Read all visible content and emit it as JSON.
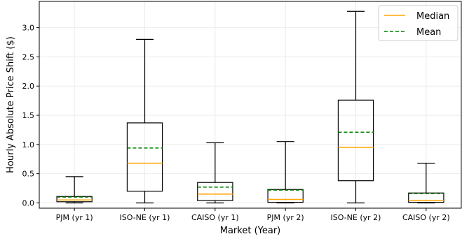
{
  "chart_data": {
    "type": "box",
    "xlabel": "Market (Year)",
    "ylabel": "Hourly Absolute Price Shift ($)",
    "ylim": [
      -0.09,
      3.45
    ],
    "yticks": [
      "0.0",
      "0.5",
      "1.0",
      "1.5",
      "2.0",
      "2.5",
      "3.0"
    ],
    "grid": true,
    "legend": {
      "position": "top-right",
      "entries": [
        {
          "label": "Median",
          "color": "#ffa500",
          "style": "solid"
        },
        {
          "label": "Mean",
          "color": "#008000",
          "style": "dashed"
        }
      ]
    },
    "categories": [
      "PJM (yr 1)",
      "ISO-NE (yr 1)",
      "CAISO (yr 1)",
      "PJM (yr 2)",
      "ISO-NE (yr 2)",
      "CAISO (yr 2)"
    ],
    "boxes": [
      {
        "whisker_low": 0.0,
        "q1": 0.02,
        "median": 0.05,
        "mean": 0.1,
        "q3": 0.11,
        "whisker_high": 0.45
      },
      {
        "whisker_low": 0.0,
        "q1": 0.2,
        "median": 0.68,
        "mean": 0.94,
        "q3": 1.37,
        "whisker_high": 2.8
      },
      {
        "whisker_low": 0.0,
        "q1": 0.04,
        "median": 0.15,
        "mean": 0.27,
        "q3": 0.35,
        "whisker_high": 1.03
      },
      {
        "whisker_low": 0.0,
        "q1": 0.01,
        "median": 0.06,
        "mean": 0.22,
        "q3": 0.23,
        "whisker_high": 1.05
      },
      {
        "whisker_low": 0.0,
        "q1": 0.38,
        "median": 0.95,
        "mean": 1.21,
        "q3": 1.76,
        "whisker_high": 3.28
      },
      {
        "whisker_low": 0.0,
        "q1": 0.01,
        "median": 0.04,
        "mean": 0.16,
        "q3": 0.17,
        "whisker_high": 0.68
      }
    ],
    "colors": {
      "box": "#000000",
      "grid": "#ebebeb"
    }
  }
}
